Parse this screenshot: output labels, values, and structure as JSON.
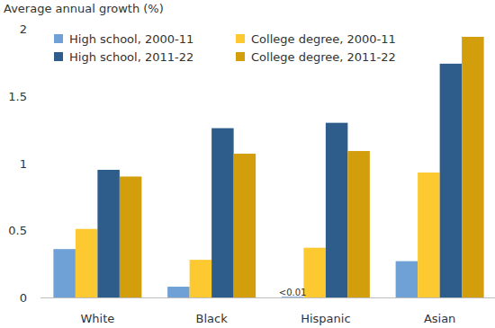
{
  "chart_data": {
    "type": "bar",
    "y_label": "Average annual growth (%)",
    "categories": [
      "White",
      "Black",
      "Hispanic",
      "Asian"
    ],
    "series": [
      {
        "name": "High school, 2000-11",
        "color": "#6fa0d6",
        "values": [
          0.36,
          0.08,
          0.005,
          0.27
        ]
      },
      {
        "name": "College degree, 2000-11",
        "color": "#fcc930",
        "values": [
          0.51,
          0.28,
          0.37,
          0.93
        ]
      },
      {
        "name": "High school, 2011-22",
        "color": "#2e5d8b",
        "values": [
          0.95,
          1.26,
          1.3,
          1.74
        ]
      },
      {
        "name": "College degree, 2011-22",
        "color": "#d29e0c",
        "values": [
          0.9,
          1.07,
          1.09,
          1.94
        ]
      }
    ],
    "annotations": [
      {
        "text": "<0.01",
        "category": "Hispanic",
        "series": "High school, 2000-11"
      }
    ],
    "ylim": [
      0,
      2
    ],
    "yticks": [
      0,
      0.5,
      1,
      1.5,
      2
    ],
    "grid": false,
    "legend": "upper left"
  }
}
